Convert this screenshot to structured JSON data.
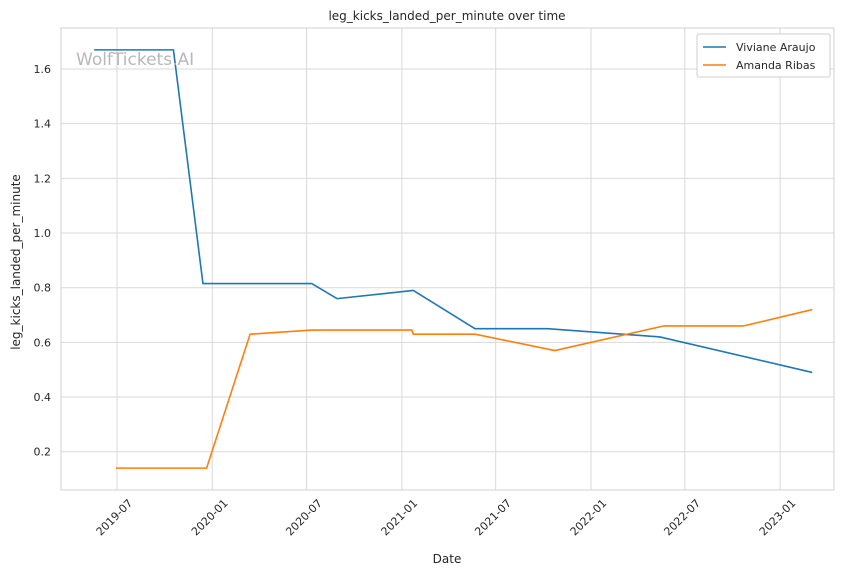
{
  "chart_data": {
    "type": "line",
    "title": "leg_kicks_landed_per_minute over time",
    "xlabel": "Date",
    "ylabel": "leg_kicks_landed_per_minute",
    "x_ticks": [
      "2019-07",
      "2020-01",
      "2020-07",
      "2021-01",
      "2021-07",
      "2022-01",
      "2022-07",
      "2023-01"
    ],
    "y_ticks": [
      "0.2",
      "0.4",
      "0.6",
      "0.8",
      "1.0",
      "1.2",
      "1.4",
      "1.6"
    ],
    "xlim": [
      "2019-03-15",
      "2023-04-15"
    ],
    "ylim": [
      0.06,
      1.75
    ],
    "grid": true,
    "legend_position": "top-right",
    "watermark": "WolfTickets.AI",
    "series": [
      {
        "name": "Viviane Araujo",
        "color": "#1f77b4",
        "x": [
          "2019-05-18",
          "2019-10-18",
          "2019-12-14",
          "2020-07-11",
          "2020-08-29",
          "2021-01-23",
          "2021-05-22",
          "2021-10-09",
          "2022-05-14",
          "2023-03-04"
        ],
        "y": [
          1.67,
          1.67,
          0.815,
          0.815,
          0.76,
          0.79,
          0.65,
          0.65,
          0.62,
          0.49
        ]
      },
      {
        "name": "Amanda Ribas",
        "color": "#ff7f0e",
        "x": [
          "2019-06-29",
          "2019-12-21",
          "2020-03-14",
          "2020-07-11",
          "2021-01-20",
          "2021-01-23",
          "2021-05-22",
          "2021-10-23",
          "2022-05-21",
          "2022-10-22",
          "2023-03-04"
        ],
        "y": [
          0.14,
          0.14,
          0.63,
          0.645,
          0.645,
          0.63,
          0.63,
          0.57,
          0.66,
          0.66,
          0.72
        ]
      }
    ]
  }
}
